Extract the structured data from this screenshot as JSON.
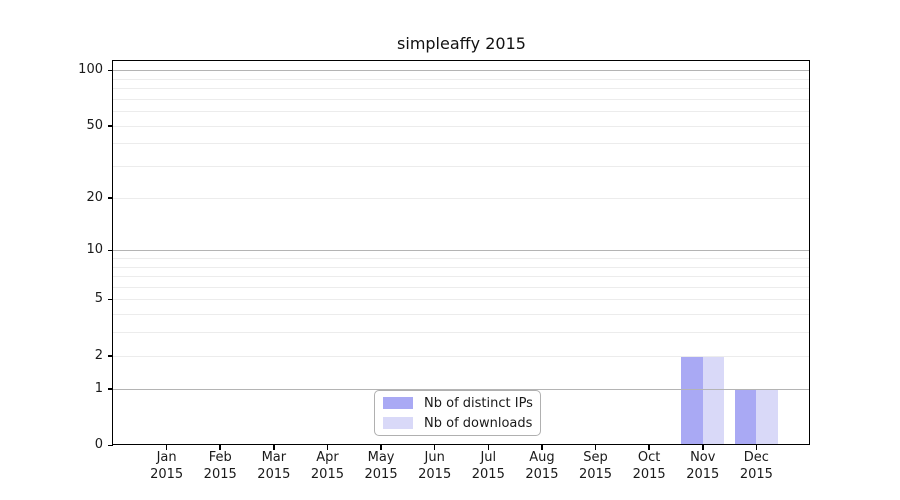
{
  "chart_data": {
    "type": "bar",
    "title": "simpleaffy 2015",
    "year_label": "2015",
    "categories": [
      "Jan",
      "Feb",
      "Mar",
      "Apr",
      "May",
      "Jun",
      "Jul",
      "Aug",
      "Sep",
      "Oct",
      "Nov",
      "Dec"
    ],
    "series": [
      {
        "name": "Nb of distinct IPs",
        "color": "#a9a9f4",
        "values": [
          0,
          0,
          0,
          0,
          0,
          0,
          0,
          0,
          0,
          0,
          2,
          1
        ]
      },
      {
        "name": "Nb of downloads",
        "color": "#d9d9f8",
        "values": [
          0,
          0,
          0,
          0,
          0,
          0,
          0,
          0,
          0,
          0,
          2,
          1
        ]
      }
    ],
    "yscale": "log1p",
    "ylim": [
      0,
      112
    ],
    "yticks": [
      0,
      1,
      2,
      5,
      10,
      20,
      50,
      100
    ],
    "major_gridlines": [
      1,
      10,
      100
    ],
    "minor_gridlines": [
      2,
      3,
      4,
      5,
      6,
      7,
      8,
      9,
      20,
      30,
      40,
      50,
      60,
      70,
      80,
      90
    ],
    "grid": "horizontal",
    "legend_position": "bottom-center"
  },
  "colors": {
    "background": "#ffffff",
    "axis": "#000000",
    "text": "#1a1a1a",
    "major_grid": "#b4b4b4",
    "minor_grid": "#ececec"
  }
}
